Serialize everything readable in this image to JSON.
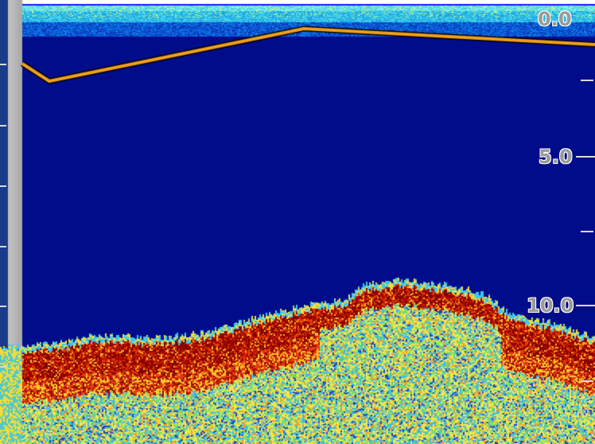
{
  "depth_scale": {
    "labels": [
      "0.0",
      "5.0",
      "10.0"
    ]
  },
  "colors": {
    "water": "#000c8a",
    "bottom_strong": "#8a0000",
    "bottom_weak": "#f7e43a",
    "track_line": "#f0a020"
  }
}
